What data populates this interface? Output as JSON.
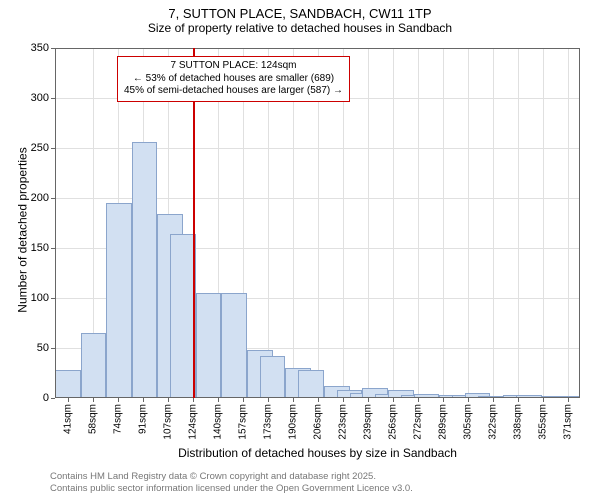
{
  "title": "7, SUTTON PLACE, SANDBACH, CW11 1TP",
  "subtitle": "Size of property relative to detached houses in Sandbach",
  "chart": {
    "type": "histogram",
    "xlabel": "Distribution of detached houses by size in Sandbach",
    "ylabel": "Number of detached properties",
    "ylim": [
      0,
      350
    ],
    "ytick_step": 50,
    "yticks": [
      0,
      50,
      100,
      150,
      200,
      250,
      300,
      350
    ],
    "xticks": [
      "41sqm",
      "58sqm",
      "74sqm",
      "91sqm",
      "107sqm",
      "124sqm",
      "140sqm",
      "157sqm",
      "173sqm",
      "190sqm",
      "206sqm",
      "223sqm",
      "239sqm",
      "256sqm",
      "272sqm",
      "289sqm",
      "305sqm",
      "322sqm",
      "338sqm",
      "355sqm",
      "371sqm"
    ],
    "values": [
      28,
      0,
      65,
      0,
      195,
      0,
      256,
      0,
      184,
      164,
      0,
      105,
      0,
      105,
      0,
      48,
      42,
      0,
      30,
      28,
      0,
      12,
      8,
      5,
      10,
      4,
      8,
      3,
      4,
      0,
      3,
      3,
      5,
      2,
      2,
      3,
      3,
      0,
      2,
      2,
      0
    ],
    "bar_visible": [
      true,
      false,
      true,
      false,
      true,
      false,
      true,
      false,
      true,
      true,
      false,
      true,
      false,
      true,
      false,
      true,
      true,
      false,
      true,
      true,
      false,
      true,
      true,
      true,
      true,
      true,
      true,
      true,
      true,
      false,
      true,
      true,
      true,
      true,
      true,
      true,
      true,
      false,
      true,
      true,
      false
    ],
    "bar_fill": "#d2e0f2",
    "bar_stroke": "#8ba5cc",
    "grid_color": "#e0e0e0",
    "background_color": "#ffffff",
    "axis_color": "#666666",
    "reference_line": {
      "value": 124,
      "color": "#cc0000",
      "position_index": 5
    },
    "annotation": {
      "line1": "7 SUTTON PLACE: 124sqm",
      "line2": "← 53% of detached houses are smaller (689)",
      "line3": "45% of semi-detached houses are larger (587) →",
      "border_color": "#cc0000"
    }
  },
  "footer1": "Contains HM Land Registry data © Crown copyright and database right 2025.",
  "footer2": "Contains public sector information licensed under the Open Government Licence v3.0."
}
